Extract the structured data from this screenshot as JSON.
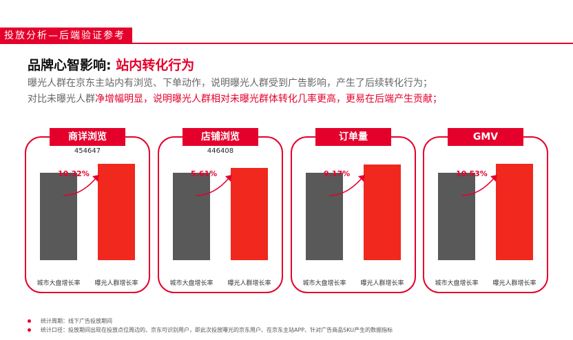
{
  "header": {
    "section_tag": "投放分析—后端验证参考",
    "title_prefix": "品牌心智影响: ",
    "title_highlight": "站内转化行为"
  },
  "description": {
    "line1": "曝光人群在京东主站内有浏览、下单动作，说明曝光人群受到广告影响，产生了后续转化行为；",
    "line2_normal": "对比未曝光人群",
    "line2_highlight": "净增幅明显，说明曝光人群相对未曝光群体转化几率更高，更易在后端产生贡献；"
  },
  "colors": {
    "accent": "#e4002b",
    "base_bar": "#595959",
    "exposed_bar": "#f0281e"
  },
  "chart_data": [
    {
      "type": "bar",
      "title": "商详浏览",
      "annotation": "454647",
      "growth_label": "10.32%",
      "categories": [
        "城市大盘增长率",
        "曝光人群增长率"
      ],
      "values": [
        1.0,
        1.1032
      ]
    },
    {
      "type": "bar",
      "title": "店铺浏览",
      "annotation": "446408",
      "growth_label": "5.61%",
      "categories": [
        "城市大盘增长率",
        "曝光人群增长率"
      ],
      "values": [
        1.0,
        1.0561
      ]
    },
    {
      "type": "bar",
      "title": "订单量",
      "annotation": "",
      "growth_label": "9.17%",
      "categories": [
        "城市大盘增长率",
        "曝光人群增长率"
      ],
      "values": [
        1.0,
        1.0917
      ]
    },
    {
      "type": "bar",
      "title": "GMV",
      "annotation": "",
      "growth_label": "10.53%",
      "categories": [
        "城市大盘增长率",
        "曝光人群增长率"
      ],
      "values": [
        1.0,
        1.1053
      ]
    }
  ],
  "notes": [
    "统计周期：线下广告投放期间",
    "统计口径：投放期间出现在投放点位周边的、京东可识别用户，即此次投放曝光的京东用户、在京东主站APP、针对广告商品SKU产生的数据指标"
  ]
}
